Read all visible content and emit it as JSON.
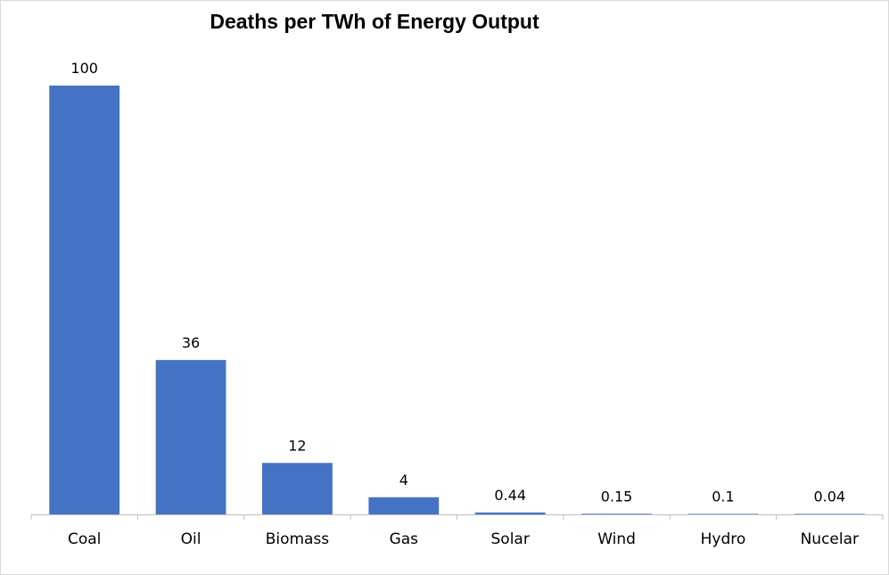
{
  "chart_data": {
    "type": "bar",
    "title": "Deaths per TWh of Energy Output",
    "xlabel": "",
    "ylabel": "",
    "categories": [
      "Coal",
      "Oil",
      "Biomass",
      "Gas",
      "Solar",
      "Wind",
      "Hydro",
      "Nucelar"
    ],
    "values": [
      100,
      36,
      12,
      4,
      0.44,
      0.15,
      0.1,
      0.04
    ],
    "value_labels": [
      "100",
      "36",
      "12",
      "4",
      "0.44",
      "0.15",
      "0.1",
      "0.04"
    ],
    "ylim": [
      0,
      100
    ],
    "grid": false,
    "legend": "none",
    "bar_color": "#4472C4",
    "axis_color": "#bfbfbf"
  }
}
